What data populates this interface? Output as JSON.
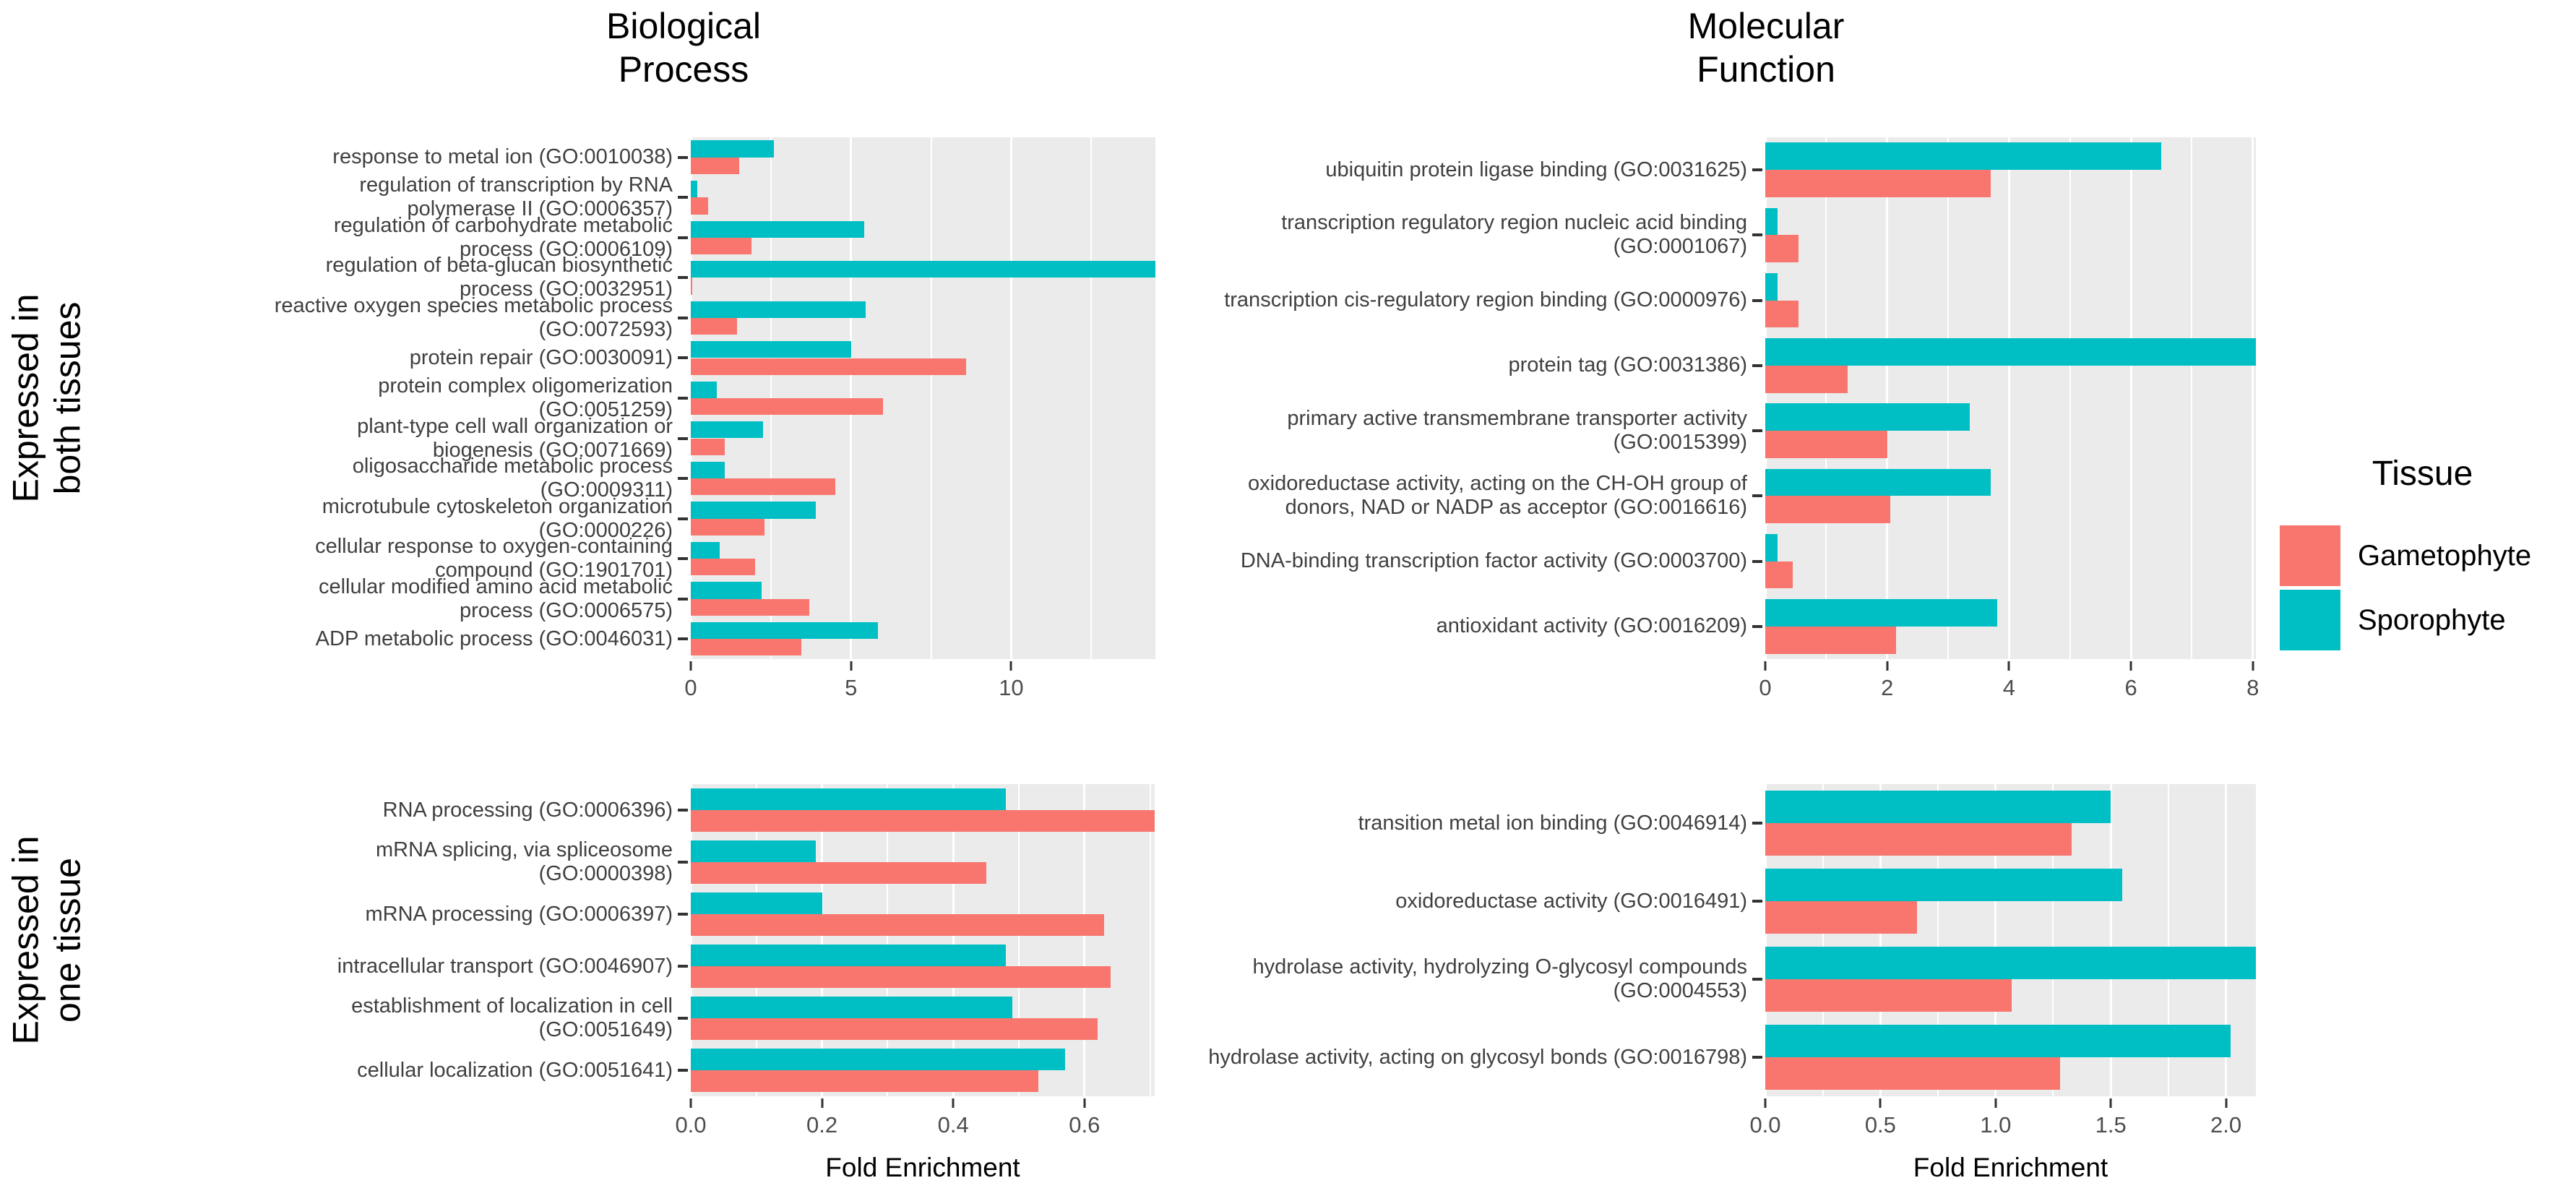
{
  "figure": {
    "col_titles": [
      {
        "line1": "Biological",
        "line2": "Process"
      },
      {
        "line1": "Molecular",
        "line2": "Function"
      }
    ],
    "row_titles": [
      {
        "line1": "Expressed in",
        "line2": "both tissues"
      },
      {
        "line1": "Expressed in",
        "line2": "one tissue"
      }
    ],
    "x_axis_title": "Fold Enrichment"
  },
  "legend": {
    "title": "Tissue",
    "items": [
      {
        "label": "Gametophyte",
        "color": "#F8766D"
      },
      {
        "label": "Sporophyte",
        "color": "#00BFC4"
      }
    ]
  },
  "colors": {
    "panel_bg": "#EBEBEB",
    "gridline": "#FFFFFF",
    "gametophyte": "#F8766D",
    "sporophyte": "#00BFC4"
  },
  "chart_data": [
    {
      "id": "bp_both",
      "type": "bar",
      "orientation": "horizontal",
      "facet_row": "Expressed in both tissues",
      "facet_col": "Biological Process",
      "xlim": [
        0,
        14.5
      ],
      "tick_values": [
        0,
        5,
        10
      ],
      "tick_labels": [
        "0",
        "5",
        "10"
      ],
      "categories": [
        "response to metal ion (GO:0010038)",
        "regulation of transcription by RNA polymerase II (GO:0006357)",
        "regulation of carbohydrate metabolic process (GO:0006109)",
        "regulation of beta-glucan biosynthetic process (GO:0032951)",
        "reactive oxygen species metabolic process (GO:0072593)",
        "protein repair (GO:0030091)",
        "protein complex oligomerization (GO:0051259)",
        "plant-type cell wall organization or biogenesis (GO:0071669)",
        "oligosaccharide metabolic process (GO:0009311)",
        "microtubule cytoskeleton organization (GO:0000226)",
        "cellular response to oxygen-containing compound (GO:1901701)",
        "cellular modified amino acid metabolic process (GO:0006575)",
        "ADP metabolic process (GO:0046031)"
      ],
      "series": [
        {
          "name": "Sporophyte",
          "values": [
            2.6,
            0.2,
            5.4,
            14.5,
            5.45,
            5.0,
            0.8,
            2.25,
            1.05,
            3.9,
            0.9,
            2.2,
            5.85
          ]
        },
        {
          "name": "Gametophyte",
          "values": [
            1.5,
            0.55,
            1.9,
            0.05,
            1.45,
            8.6,
            6.0,
            1.05,
            4.5,
            2.3,
            2.0,
            3.7,
            3.45
          ]
        }
      ]
    },
    {
      "id": "mf_both",
      "type": "bar",
      "orientation": "horizontal",
      "facet_row": "Expressed in both tissues",
      "facet_col": "Molecular Function",
      "xlim": [
        0,
        8.05
      ],
      "tick_values": [
        0,
        2,
        4,
        6,
        8
      ],
      "tick_labels": [
        "0",
        "2",
        "4",
        "6",
        "8"
      ],
      "categories": [
        "ubiquitin protein ligase binding (GO:0031625)",
        "transcription regulatory region nucleic acid binding (GO:0001067)",
        "transcription cis-regulatory region binding (GO:0000976)",
        "protein tag (GO:0031386)",
        "primary active transmembrane transporter activity (GO:0015399)",
        "oxidoreductase activity, acting on the CH-OH group of donors, NAD or NADP as acceptor (GO:0016616)",
        "DNA-binding transcription factor activity (GO:0003700)",
        "antioxidant activity (GO:0016209)"
      ],
      "series": [
        {
          "name": "Sporophyte",
          "values": [
            6.5,
            0.2,
            0.2,
            8.05,
            3.35,
            3.7,
            0.2,
            3.8
          ]
        },
        {
          "name": "Gametophyte",
          "values": [
            3.7,
            0.55,
            0.55,
            1.35,
            2.0,
            2.05,
            0.45,
            2.15
          ]
        }
      ]
    },
    {
      "id": "bp_one",
      "type": "bar",
      "orientation": "horizontal",
      "facet_row": "Expressed in one tissue",
      "facet_col": "Biological Process",
      "xlim": [
        0,
        0.707
      ],
      "tick_values": [
        0,
        0.2,
        0.4,
        0.6
      ],
      "tick_labels": [
        "0.0",
        "0.2",
        "0.4",
        "0.6"
      ],
      "categories": [
        "RNA processing (GO:0006396)",
        "mRNA splicing, via spliceosome (GO:0000398)",
        "mRNA processing (GO:0006397)",
        "intracellular transport (GO:0046907)",
        "establishment of localization in cell (GO:0051649)",
        "cellular localization (GO:0051641)"
      ],
      "series": [
        {
          "name": "Sporophyte",
          "values": [
            0.48,
            0.19,
            0.2,
            0.48,
            0.49,
            0.57
          ]
        },
        {
          "name": "Gametophyte",
          "values": [
            0.707,
            0.45,
            0.63,
            0.64,
            0.62,
            0.53
          ]
        }
      ]
    },
    {
      "id": "mf_one",
      "type": "bar",
      "orientation": "horizontal",
      "facet_row": "Expressed in one tissue",
      "facet_col": "Molecular Function",
      "xlim": [
        0,
        2.13
      ],
      "tick_values": [
        0,
        0.5,
        1.0,
        1.5,
        2.0
      ],
      "tick_labels": [
        "0.0",
        "0.5",
        "1.0",
        "1.5",
        "2.0"
      ],
      "categories": [
        "transition metal ion binding (GO:0046914)",
        "oxidoreductase activity (GO:0016491)",
        "hydrolase activity, hydrolyzing O-glycosyl compounds (GO:0004553)",
        "hydrolase activity, acting on glycosyl bonds (GO:0016798)"
      ],
      "series": [
        {
          "name": "Sporophyte",
          "values": [
            1.5,
            1.55,
            2.13,
            2.02
          ]
        },
        {
          "name": "Gametophyte",
          "values": [
            1.33,
            0.66,
            1.07,
            1.28
          ]
        }
      ]
    }
  ]
}
